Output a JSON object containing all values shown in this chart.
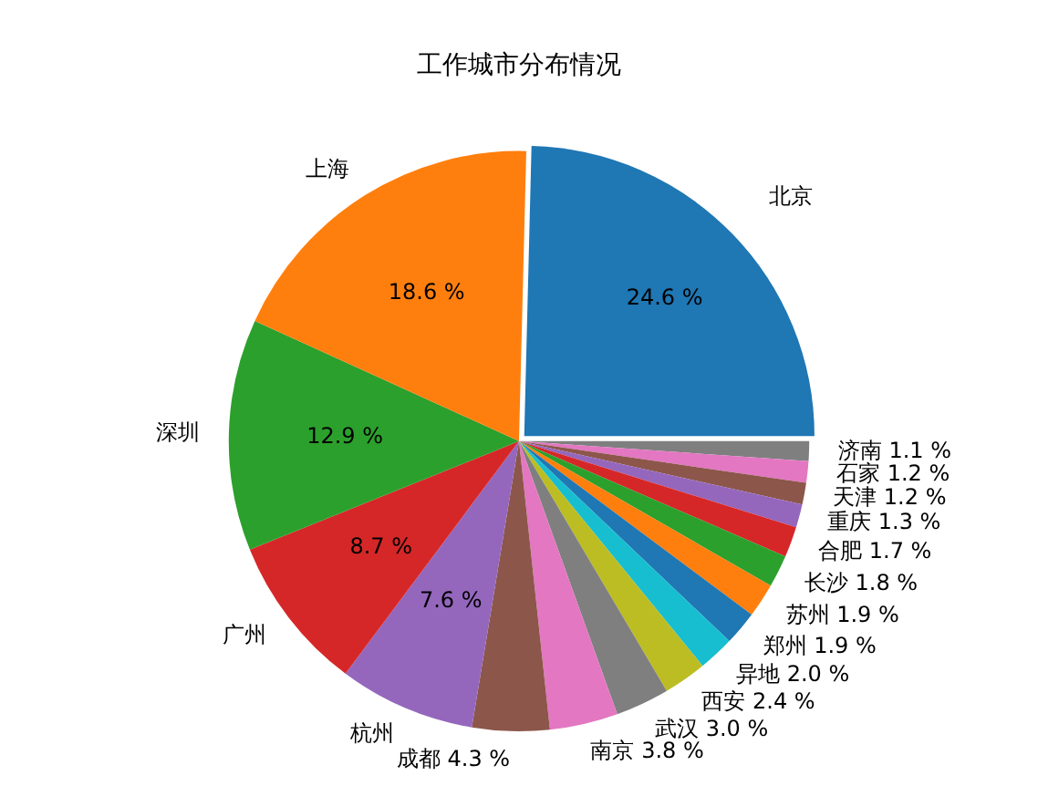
{
  "chart_data": {
    "type": "pie",
    "title": "工作城市分布情况",
    "categories": [
      "北京",
      "上海",
      "深圳",
      "广州",
      "杭州",
      "成都",
      "南京",
      "武汉",
      "西安",
      "异地",
      "郑州",
      "苏州",
      "长沙",
      "合肥",
      "重庆",
      "天津",
      "石家",
      "济南"
    ],
    "values": [
      24.6,
      18.6,
      12.9,
      8.7,
      7.6,
      4.3,
      3.8,
      3.0,
      2.4,
      2.0,
      1.9,
      1.9,
      1.8,
      1.7,
      1.3,
      1.2,
      1.2,
      1.1
    ],
    "value_labels": [
      "24.6 %",
      "18.6 %",
      "12.9 %",
      "8.7 %",
      "7.6 %",
      "4.3 %",
      "3.8 %",
      "3.0 %",
      "2.4 %",
      "2.0 %",
      "1.9 %",
      "1.9 %",
      "1.8 %",
      "1.7 %",
      "1.3 %",
      "1.2 %",
      "1.2 %",
      "1.1 %"
    ],
    "colors": [
      "#1f77b4",
      "#ff7f0e",
      "#2ca02c",
      "#d62728",
      "#9467bd",
      "#8c564b",
      "#e377c2",
      "#7f7f7f",
      "#bcbd22",
      "#17becf",
      "#1f77b4",
      "#ff7f0e",
      "#2ca02c",
      "#d62728",
      "#9467bd",
      "#8c564b",
      "#e377c2",
      "#7f7f7f"
    ],
    "legend": false
  }
}
